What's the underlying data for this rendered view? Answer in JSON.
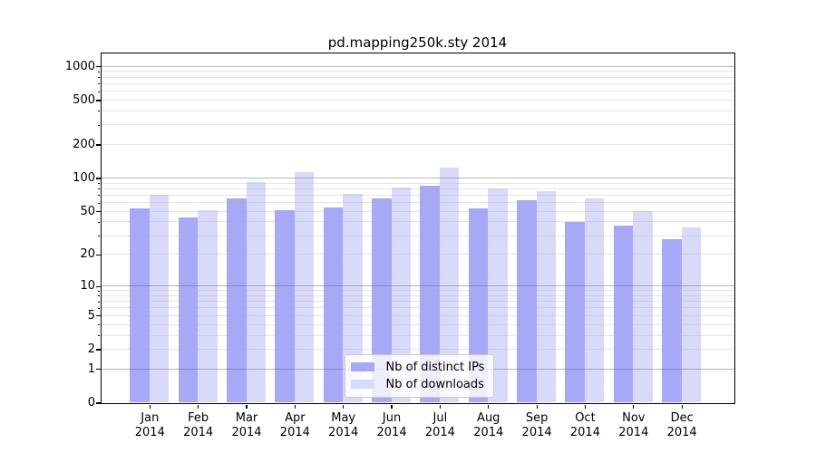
{
  "chart_data": {
    "type": "bar",
    "title": "pd.mapping250k.sty 2014",
    "categories": [
      "Jan 2014",
      "Feb 2014",
      "Mar 2014",
      "Apr 2014",
      "May 2014",
      "Jun 2014",
      "Jul 2014",
      "Aug 2014",
      "Sep 2014",
      "Oct 2014",
      "Nov 2014",
      "Dec 2014"
    ],
    "series": [
      {
        "name": "Nb of distinct IPs",
        "color": "#a8a8f8",
        "values": [
          53,
          44,
          65,
          51,
          54,
          66,
          86,
          53,
          63,
          40,
          37,
          28
        ]
      },
      {
        "name": "Nb of downloads",
        "color": "#d9d9f9",
        "values": [
          71,
          51,
          92,
          113,
          72,
          82,
          125,
          80,
          76,
          66,
          50,
          36
        ]
      }
    ],
    "xlabel": "",
    "ylabel": "",
    "yscale": "log1p",
    "yticks": [
      1000,
      500,
      200,
      100,
      50,
      20,
      10,
      5,
      2,
      1,
      0
    ],
    "ylim": [
      0,
      1318
    ],
    "grid": true,
    "legend_position": "lower center"
  }
}
